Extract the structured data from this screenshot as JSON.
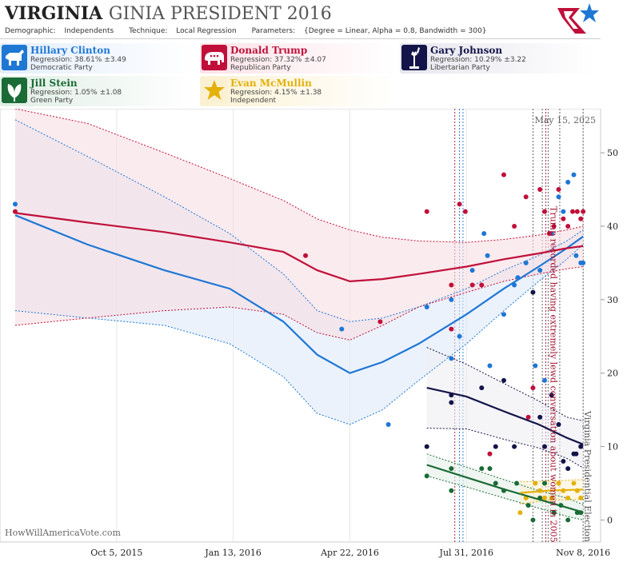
{
  "header": {
    "title_main": "VIRGINIA",
    "title_sub": "GINIA PRESIDENT 2016",
    "demographic_label": "Demographic:",
    "demographic_value": "Independents",
    "technique_label": "Technique:",
    "technique_value": "Local Regression",
    "parameters_label": "Parameters:",
    "parameters_value": "{Degree = Linear, Alpha = 0.8, Bandwidth = 300}"
  },
  "candidates": [
    {
      "name": "Hillary Clinton",
      "regression": "Regression: 38.61% ±3.49",
      "party": "Democratic Party",
      "color": "#1f77d4",
      "icon": "donkey-icon"
    },
    {
      "name": "Donald Trump",
      "regression": "Regression: 37.32% ±4.07",
      "party": "Republican Party",
      "color": "#c0103a",
      "icon": "elephant-icon"
    },
    {
      "name": "Gary Johnson",
      "regression": "Regression: 10.29% ±3.22",
      "party": "Libertarian Party",
      "color": "#14144a",
      "icon": "liberty-icon"
    },
    {
      "name": "Jill Stein",
      "regression": "Regression: 1.05% ±1.08",
      "party": "Green Party",
      "color": "#1a6b35",
      "icon": "leaf-icon"
    },
    {
      "name": "Evan McMullin",
      "regression": "Regression: 4.15% ±1.38",
      "party": "Independent",
      "color": "#e3b10a",
      "icon": "star-icon"
    }
  ],
  "chart_data": {
    "type": "scatter",
    "date_label": "May 15, 2025",
    "watermark": "HowWillAmericaVote.com",
    "x_ticks": [
      "Oct 5, 2015",
      "Jan 13, 2016",
      "Apr 22, 2016",
      "Jul 31, 2016",
      "Nov 8, 2016"
    ],
    "y_ticks": [
      0,
      10,
      20,
      30,
      40,
      50
    ],
    "xlim": [
      "2015-06-27",
      "2016-11-23"
    ],
    "ylim": [
      -3,
      56
    ],
    "annotations": [
      {
        "text": "Trump recorded having extremely lewd conversation about women in 2005",
        "date": "2016-10-07",
        "color": "#a01030"
      },
      {
        "text": "Virginia Presidential Election",
        "date": "2016-11-08",
        "color": "#555555"
      }
    ],
    "event_lines": [
      {
        "date": "2016-07-21",
        "color": "#a01030"
      },
      {
        "date": "2016-07-25",
        "color": "#1f77d4"
      },
      {
        "date": "2016-07-28",
        "color": "#1f77d4"
      },
      {
        "date": "2016-09-26",
        "color": "#555555"
      },
      {
        "date": "2016-10-04",
        "color": "#555555"
      },
      {
        "date": "2016-10-07",
        "color": "#a01030"
      },
      {
        "date": "2016-10-09",
        "color": "#555555"
      },
      {
        "date": "2016-10-19",
        "color": "#555555"
      },
      {
        "date": "2016-11-08",
        "color": "#555555"
      }
    ],
    "series": [
      {
        "name": "Hillary Clinton",
        "color": "#1f77d4",
        "fill": "#ddeaf8",
        "trend": [
          [
            "2015-07-10",
            41.5
          ],
          [
            "2015-09-10",
            37.5
          ],
          [
            "2015-11-15",
            34
          ],
          [
            "2016-01-10",
            31.5
          ],
          [
            "2016-02-25",
            27
          ],
          [
            "2016-03-25",
            22.5
          ],
          [
            "2016-04-22",
            20
          ],
          [
            "2016-05-20",
            21.5
          ],
          [
            "2016-06-20",
            24
          ],
          [
            "2016-07-31",
            28
          ],
          [
            "2016-09-01",
            31.5
          ],
          [
            "2016-10-01",
            34.5
          ],
          [
            "2016-10-25",
            37
          ],
          [
            "2016-11-08",
            38.6
          ]
        ],
        "upper": [
          [
            "2015-07-10",
            54.5
          ],
          [
            "2015-09-10",
            49.5
          ],
          [
            "2015-11-15",
            44
          ],
          [
            "2016-01-10",
            39
          ],
          [
            "2016-02-25",
            33.5
          ],
          [
            "2016-03-25",
            28.5
          ],
          [
            "2016-04-22",
            27
          ],
          [
            "2016-05-20",
            27.5
          ],
          [
            "2016-06-20",
            29
          ],
          [
            "2016-07-31",
            31.5
          ],
          [
            "2016-09-01",
            34
          ],
          [
            "2016-10-01",
            36
          ],
          [
            "2016-10-25",
            38
          ],
          [
            "2016-11-08",
            39.5
          ]
        ],
        "lower": [
          [
            "2015-07-10",
            28.5
          ],
          [
            "2015-09-10",
            27.5
          ],
          [
            "2015-11-15",
            26.5
          ],
          [
            "2016-01-10",
            24
          ],
          [
            "2016-02-25",
            19.5
          ],
          [
            "2016-03-25",
            14.5
          ],
          [
            "2016-04-22",
            13
          ],
          [
            "2016-05-20",
            15
          ],
          [
            "2016-06-20",
            19
          ],
          [
            "2016-07-31",
            24
          ],
          [
            "2016-09-01",
            28.5
          ],
          [
            "2016-10-01",
            32.5
          ],
          [
            "2016-10-25",
            35.5
          ],
          [
            "2016-11-08",
            37.5
          ]
        ],
        "points": [
          [
            "2015-07-10",
            43
          ],
          [
            "2016-04-15",
            26
          ],
          [
            "2016-05-25",
            13
          ],
          [
            "2016-06-27",
            29
          ],
          [
            "2016-07-18",
            22
          ],
          [
            "2016-07-18",
            30
          ],
          [
            "2016-07-25",
            25
          ],
          [
            "2016-08-05",
            34
          ],
          [
            "2016-08-15",
            39
          ],
          [
            "2016-08-18",
            36
          ],
          [
            "2016-08-20",
            21
          ],
          [
            "2016-09-01",
            28
          ],
          [
            "2016-09-10",
            32
          ],
          [
            "2016-09-13",
            33
          ],
          [
            "2016-09-20",
            35
          ],
          [
            "2016-09-28",
            21
          ],
          [
            "2016-10-02",
            34
          ],
          [
            "2016-10-06",
            19
          ],
          [
            "2016-10-12",
            39
          ],
          [
            "2016-10-18",
            44
          ],
          [
            "2016-10-22",
            42
          ],
          [
            "2016-10-26",
            46
          ],
          [
            "2016-10-31",
            47
          ],
          [
            "2016-11-02",
            36
          ],
          [
            "2016-11-06",
            35
          ],
          [
            "2016-11-08",
            35
          ]
        ]
      },
      {
        "name": "Donald Trump",
        "color": "#c0103a",
        "fill": "#f6dde3",
        "trend": [
          [
            "2015-07-10",
            41.8
          ],
          [
            "2015-09-10",
            40.5
          ],
          [
            "2015-11-15",
            39.2
          ],
          [
            "2016-01-10",
            37.8
          ],
          [
            "2016-02-25",
            36.5
          ],
          [
            "2016-03-25",
            34
          ],
          [
            "2016-04-22",
            32.5
          ],
          [
            "2016-05-20",
            32.8
          ],
          [
            "2016-06-20",
            33.5
          ],
          [
            "2016-07-31",
            34.5
          ],
          [
            "2016-09-01",
            35.5
          ],
          [
            "2016-10-01",
            36.3
          ],
          [
            "2016-10-25",
            37
          ],
          [
            "2016-11-08",
            37.3
          ]
        ],
        "upper": [
          [
            "2015-07-10",
            56
          ],
          [
            "2015-09-10",
            54
          ],
          [
            "2015-11-15",
            50
          ],
          [
            "2016-01-10",
            46.5
          ],
          [
            "2016-02-25",
            43.5
          ],
          [
            "2016-03-25",
            41
          ],
          [
            "2016-04-22",
            39.5
          ],
          [
            "2016-05-20",
            38.5
          ],
          [
            "2016-06-20",
            38
          ],
          [
            "2016-07-31",
            37.8
          ],
          [
            "2016-09-01",
            38.2
          ],
          [
            "2016-10-01",
            38.8
          ],
          [
            "2016-10-25",
            39.5
          ],
          [
            "2016-11-08",
            40
          ]
        ],
        "lower": [
          [
            "2015-07-10",
            26.5
          ],
          [
            "2015-09-10",
            27.5
          ],
          [
            "2015-11-15",
            28.5
          ],
          [
            "2016-01-10",
            29
          ],
          [
            "2016-02-25",
            28
          ],
          [
            "2016-03-25",
            25.5
          ],
          [
            "2016-04-22",
            24.5
          ],
          [
            "2016-05-20",
            26.5
          ],
          [
            "2016-06-20",
            29
          ],
          [
            "2016-07-31",
            31
          ],
          [
            "2016-09-01",
            32.5
          ],
          [
            "2016-10-01",
            33.5
          ],
          [
            "2016-10-25",
            34.2
          ],
          [
            "2016-11-08",
            34.5
          ]
        ],
        "points": [
          [
            "2015-07-10",
            42
          ],
          [
            "2016-03-15",
            36
          ],
          [
            "2016-05-18",
            27
          ],
          [
            "2016-06-27",
            42
          ],
          [
            "2016-07-18",
            26
          ],
          [
            "2016-07-18",
            32
          ],
          [
            "2016-07-25",
            43
          ],
          [
            "2016-07-30",
            42
          ],
          [
            "2016-08-05",
            32
          ],
          [
            "2016-08-13",
            32
          ],
          [
            "2016-08-20",
            9
          ],
          [
            "2016-09-01",
            47
          ],
          [
            "2016-09-10",
            40
          ],
          [
            "2016-09-20",
            44
          ],
          [
            "2016-09-22",
            14
          ],
          [
            "2016-09-26",
            18
          ],
          [
            "2016-10-02",
            45
          ],
          [
            "2016-10-06",
            42
          ],
          [
            "2016-10-10",
            39
          ],
          [
            "2016-10-14",
            40
          ],
          [
            "2016-10-18",
            45
          ],
          [
            "2016-10-22",
            41
          ],
          [
            "2016-10-26",
            40
          ],
          [
            "2016-10-30",
            42
          ],
          [
            "2016-11-03",
            42
          ],
          [
            "2016-11-06",
            41
          ],
          [
            "2016-11-08",
            42
          ]
        ]
      },
      {
        "name": "Gary Johnson",
        "color": "#14144a",
        "fill": "#eeeef4",
        "trend": [
          [
            "2016-06-27",
            18
          ],
          [
            "2016-07-31",
            16.8
          ],
          [
            "2016-09-01",
            14.8
          ],
          [
            "2016-10-01",
            13
          ],
          [
            "2016-10-25",
            11.2
          ],
          [
            "2016-11-08",
            10.3
          ]
        ],
        "upper": [
          [
            "2016-06-27",
            23.5
          ],
          [
            "2016-07-31",
            21.2
          ],
          [
            "2016-09-01",
            18.6
          ],
          [
            "2016-10-01",
            16.2
          ],
          [
            "2016-10-25",
            14
          ],
          [
            "2016-11-08",
            13.5
          ]
        ],
        "lower": [
          [
            "2016-06-27",
            12.5
          ],
          [
            "2016-07-31",
            12.4
          ],
          [
            "2016-09-01",
            11
          ],
          [
            "2016-10-01",
            9.8
          ],
          [
            "2016-10-25",
            8.4
          ],
          [
            "2016-11-08",
            7.1
          ]
        ],
        "points": [
          [
            "2016-06-27",
            10
          ],
          [
            "2016-07-18",
            16
          ],
          [
            "2016-07-18",
            17
          ],
          [
            "2016-08-13",
            18
          ],
          [
            "2016-08-25",
            10
          ],
          [
            "2016-09-01",
            19
          ],
          [
            "2016-09-10",
            10
          ],
          [
            "2016-09-26",
            31
          ],
          [
            "2016-10-02",
            14
          ],
          [
            "2016-10-06",
            10
          ],
          [
            "2016-10-12",
            17
          ],
          [
            "2016-10-18",
            13
          ],
          [
            "2016-10-22",
            8
          ],
          [
            "2016-10-26",
            7
          ],
          [
            "2016-10-31",
            9
          ],
          [
            "2016-11-02",
            9
          ],
          [
            "2016-11-06",
            10
          ]
        ]
      },
      {
        "name": "Jill Stein",
        "color": "#1a6b35",
        "fill": "#e4f0e8",
        "trend": [
          [
            "2016-06-27",
            7.5
          ],
          [
            "2016-07-31",
            5.8
          ],
          [
            "2016-09-01",
            4.2
          ],
          [
            "2016-10-01",
            2.8
          ],
          [
            "2016-10-25",
            1.7
          ],
          [
            "2016-11-08",
            1.05
          ]
        ],
        "upper": [
          [
            "2016-06-27",
            9
          ],
          [
            "2016-07-31",
            7.2
          ],
          [
            "2016-09-01",
            5.5
          ],
          [
            "2016-10-01",
            4
          ],
          [
            "2016-10-25",
            3
          ],
          [
            "2016-11-08",
            2.1
          ]
        ],
        "lower": [
          [
            "2016-06-27",
            6
          ],
          [
            "2016-07-31",
            4.5
          ],
          [
            "2016-09-01",
            3
          ],
          [
            "2016-10-01",
            1.6
          ],
          [
            "2016-10-25",
            0.5
          ],
          [
            "2016-11-08",
            0
          ]
        ],
        "points": [
          [
            "2016-06-27",
            6
          ],
          [
            "2016-07-18",
            4
          ],
          [
            "2016-07-18",
            7
          ],
          [
            "2016-08-13",
            7
          ],
          [
            "2016-08-20",
            7
          ],
          [
            "2016-08-25",
            5
          ],
          [
            "2016-09-01",
            4
          ],
          [
            "2016-09-12",
            5
          ],
          [
            "2016-09-22",
            2
          ],
          [
            "2016-09-26",
            0
          ],
          [
            "2016-10-02",
            3
          ],
          [
            "2016-10-06",
            5
          ],
          [
            "2016-10-14",
            1
          ],
          [
            "2016-10-20",
            2
          ],
          [
            "2016-10-26",
            0
          ],
          [
            "2016-11-03",
            1
          ],
          [
            "2016-11-06",
            1
          ]
        ]
      },
      {
        "name": "Evan McMullin",
        "color": "#e3b10a",
        "fill": "#fbf1d6",
        "trend": [
          [
            "2016-09-15",
            3.7
          ],
          [
            "2016-10-10",
            4
          ],
          [
            "2016-11-08",
            4.15
          ]
        ],
        "upper": [
          [
            "2016-09-15",
            5.2
          ],
          [
            "2016-10-10",
            5.3
          ],
          [
            "2016-11-08",
            5.5
          ]
        ],
        "lower": [
          [
            "2016-09-15",
            2.2
          ],
          [
            "2016-10-10",
            2.7
          ],
          [
            "2016-11-08",
            2.8
          ]
        ],
        "points": [
          [
            "2016-09-15",
            1
          ],
          [
            "2016-09-20",
            3
          ],
          [
            "2016-09-28",
            5
          ],
          [
            "2016-10-02",
            4
          ],
          [
            "2016-10-06",
            3
          ],
          [
            "2016-10-12",
            3
          ],
          [
            "2016-10-18",
            5
          ],
          [
            "2016-10-22",
            4
          ],
          [
            "2016-10-26",
            3
          ],
          [
            "2016-10-31",
            5
          ],
          [
            "2016-11-03",
            4
          ],
          [
            "2016-11-06",
            3
          ]
        ]
      }
    ]
  }
}
